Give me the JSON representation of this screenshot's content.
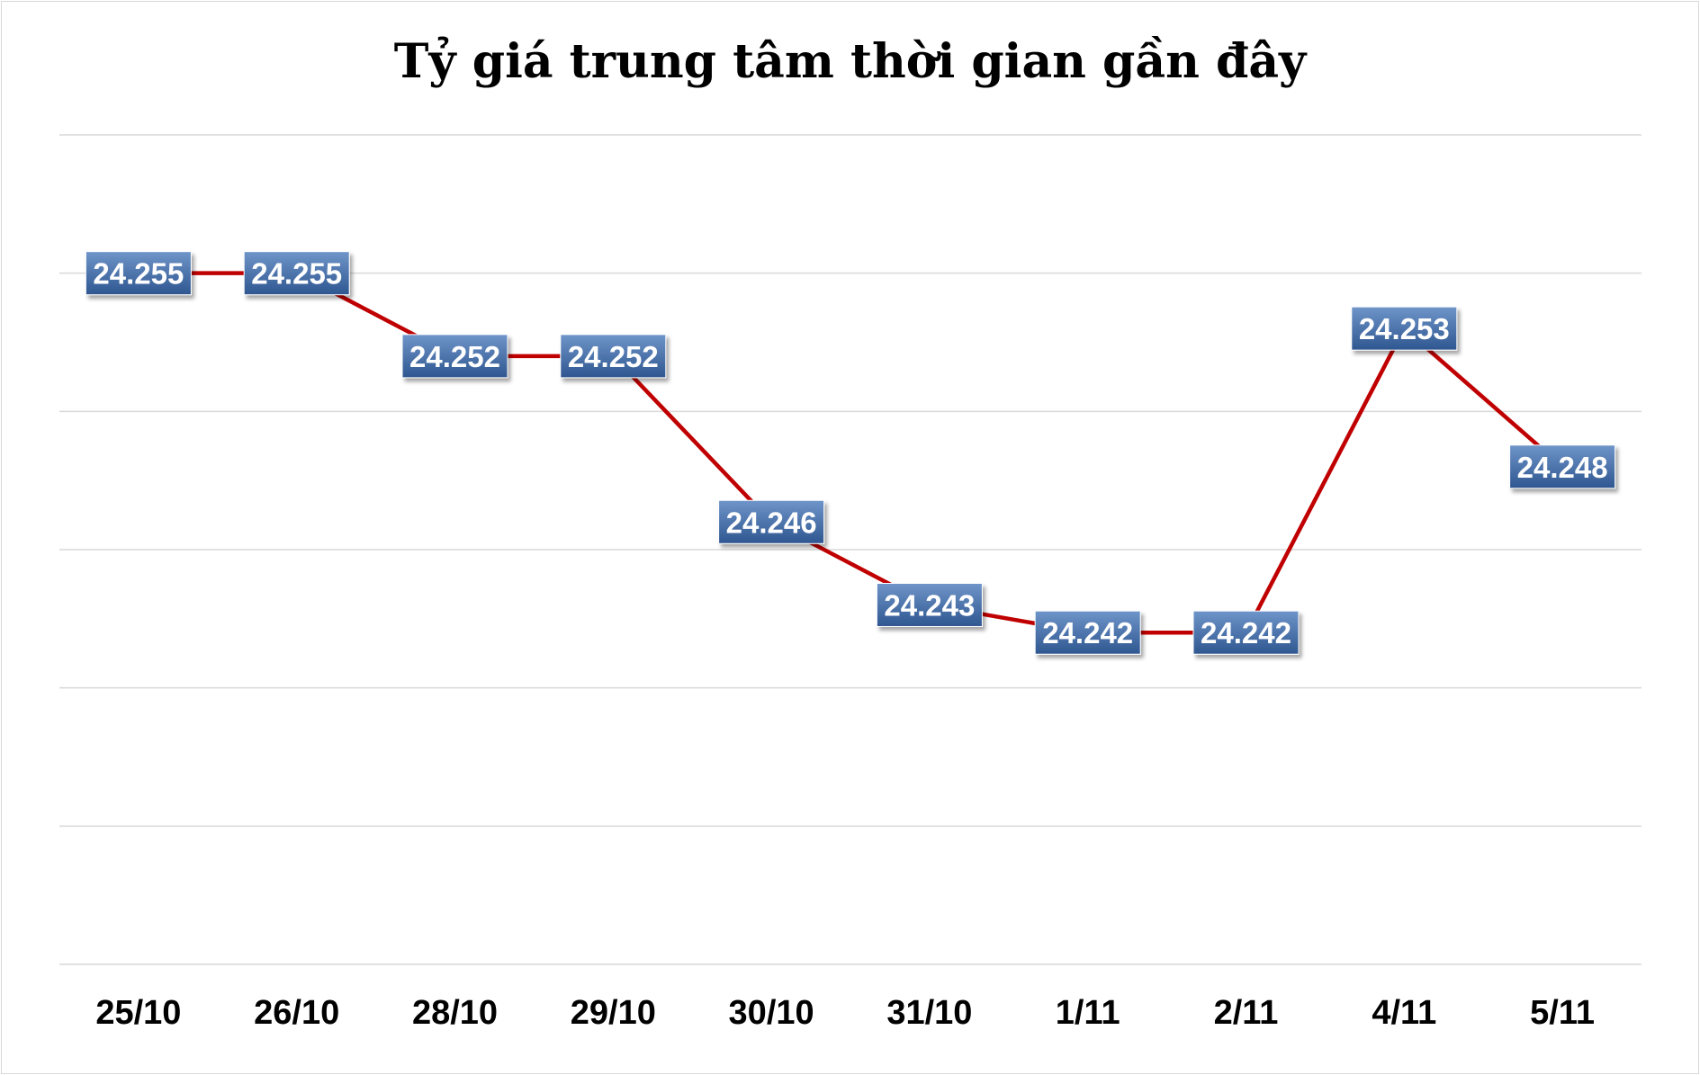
{
  "chart_data": {
    "type": "line",
    "title": "Tỷ giá trung tâm thời gian gần đây",
    "categories": [
      "25/10",
      "26/10",
      "28/10",
      "29/10",
      "30/10",
      "31/10",
      "1/11",
      "2/11",
      "4/11",
      "5/11"
    ],
    "values": [
      24255,
      24255,
      24252,
      24252,
      24246,
      24243,
      24242,
      24242,
      24253,
      24248
    ],
    "data_labels": [
      "24.255",
      "24.255",
      "24.252",
      "24.252",
      "24.246",
      "24.243",
      "24.242",
      "24.242",
      "24.253",
      "24.248"
    ],
    "ylim": [
      24230,
      24260
    ],
    "y_gridline_step": 5,
    "y_tick_labels_shown": false,
    "grid": true,
    "legend": "none",
    "colors": {
      "line": "#c00000",
      "label_bg_top": "#6f95c9",
      "label_bg_bottom": "#2e5690",
      "gridline": "#d9d9d9"
    }
  }
}
